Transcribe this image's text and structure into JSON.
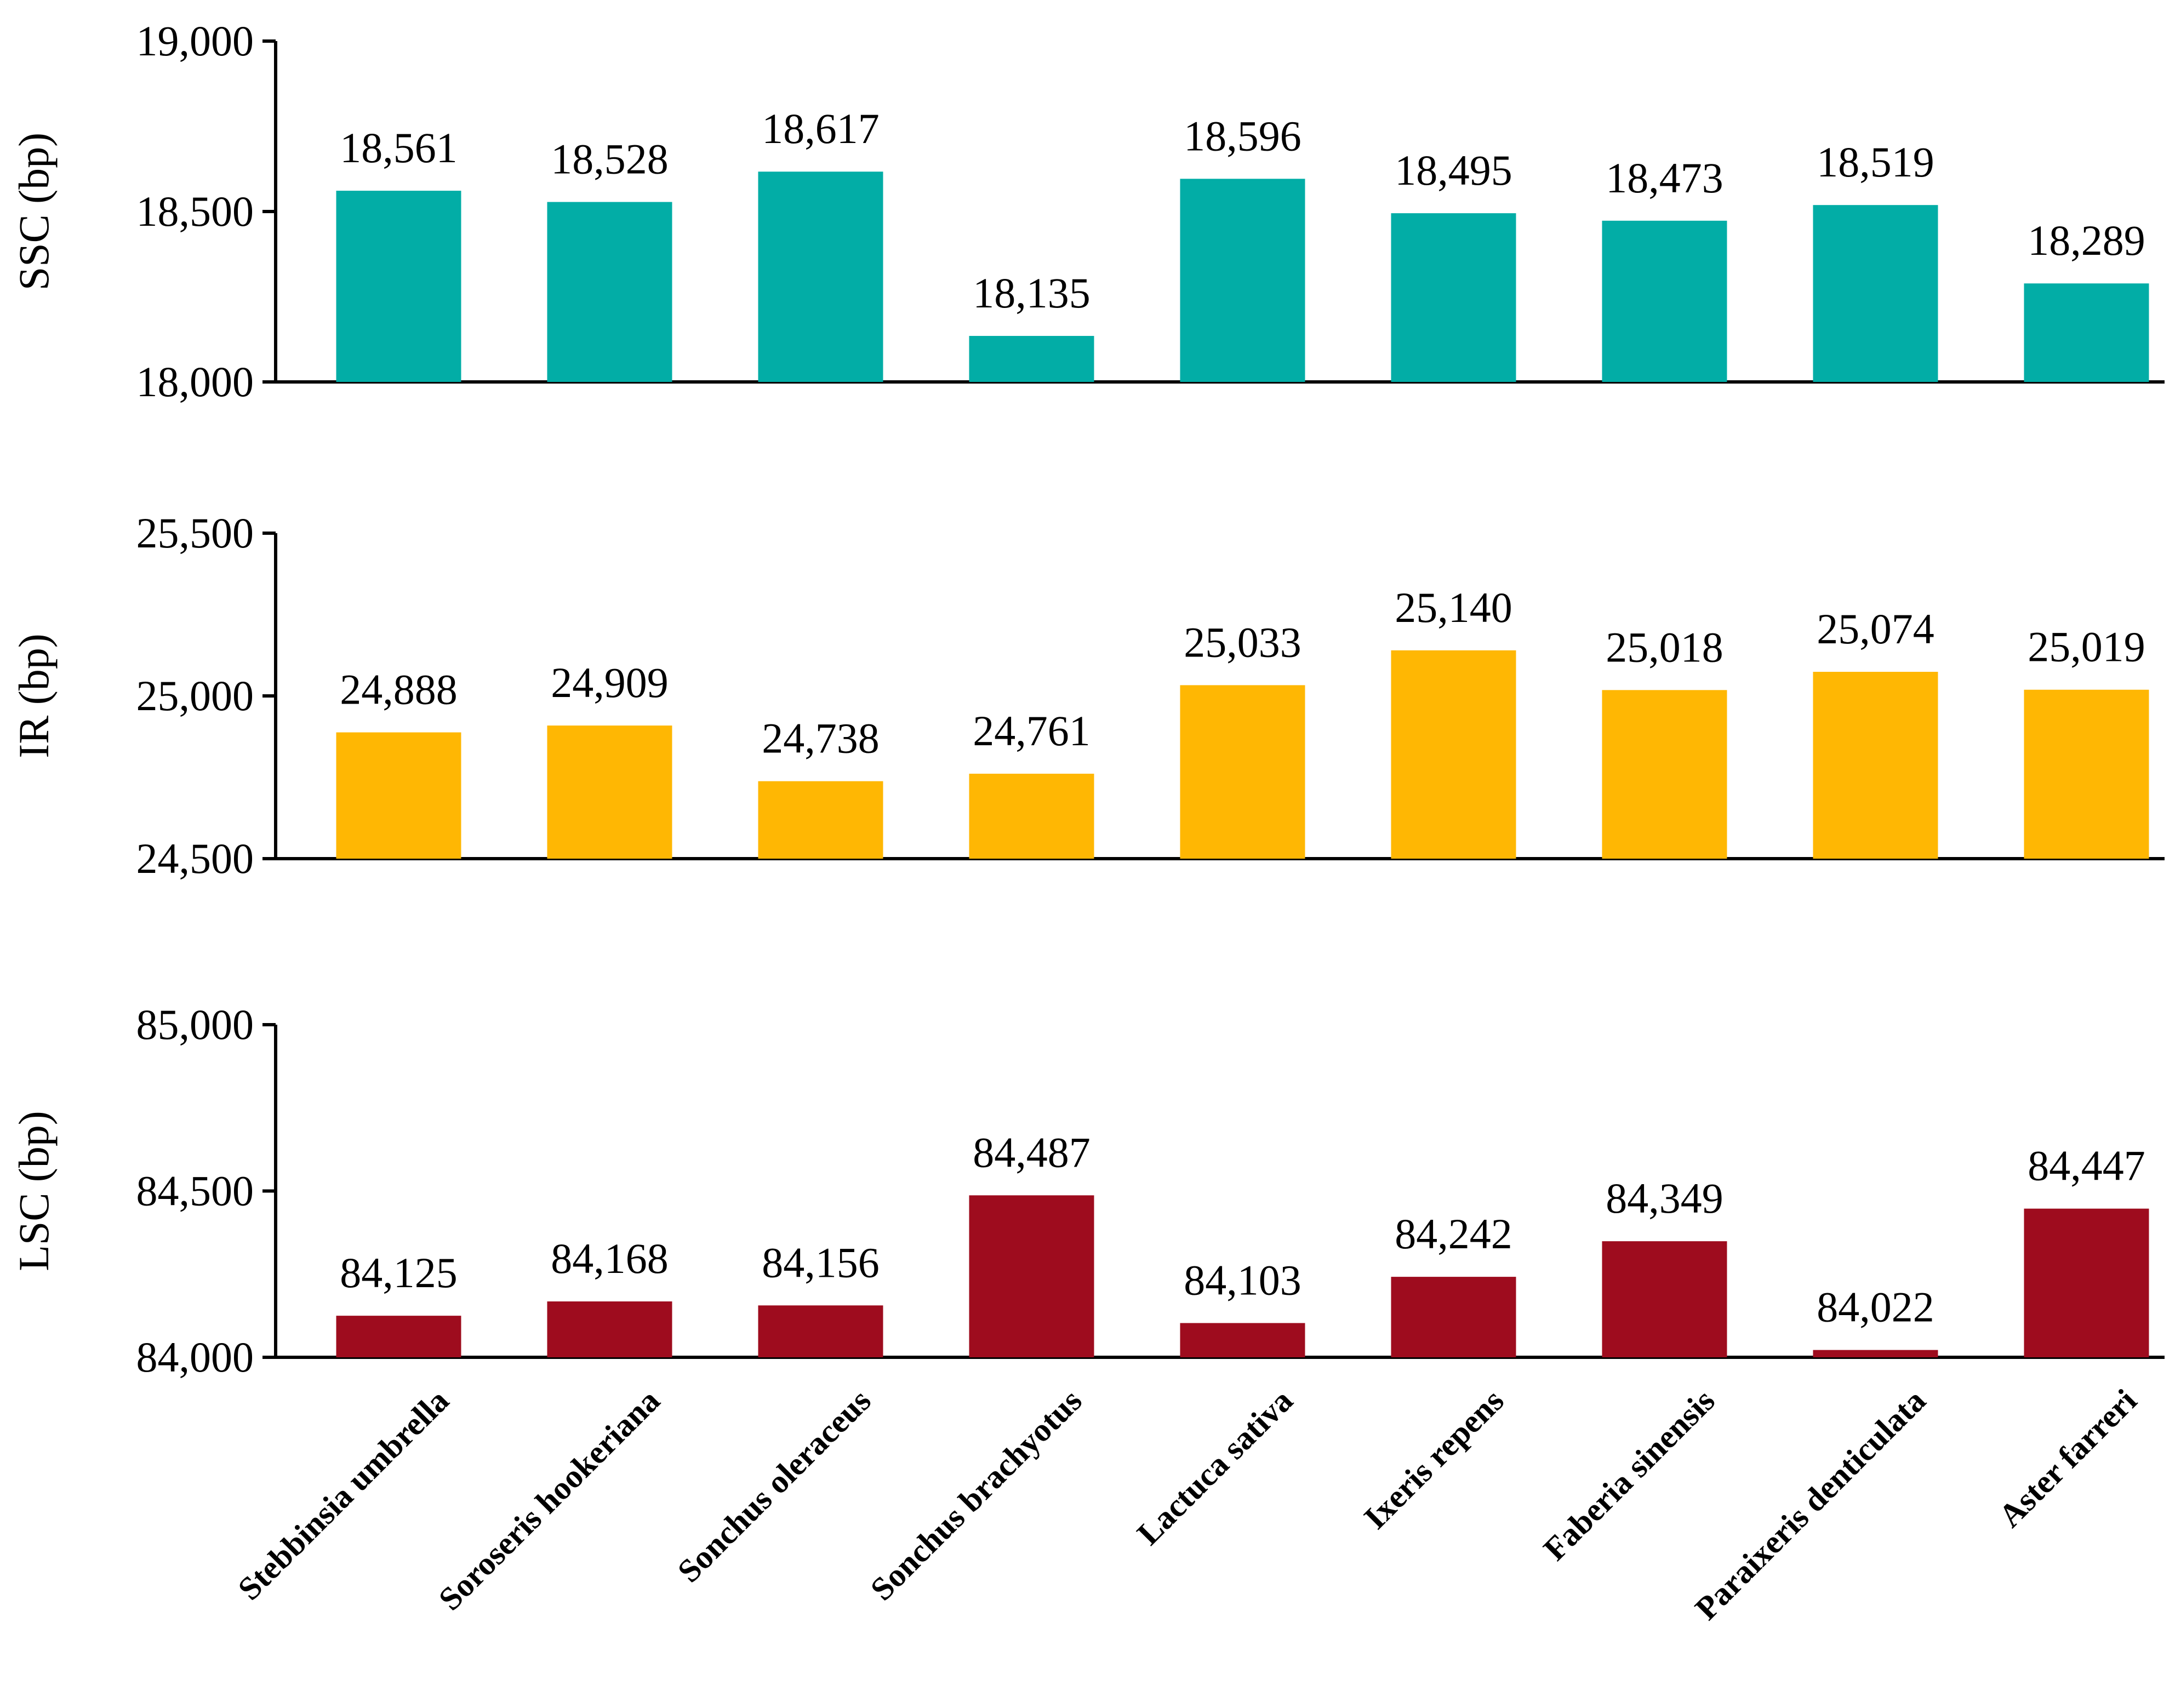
{
  "chart_data": {
    "type": "bar",
    "categories": [
      "Stebbinsia umbrella",
      "Soroseris hookeriana",
      "Sonchus oleraceus",
      "Sonchus brachyotus",
      "Lactuca sativa",
      "Ixeris repens",
      "Faberia sinensis",
      "Paraixeris denticulata",
      "Aster farreri"
    ],
    "panels": [
      {
        "name": "SSC",
        "ylabel": "SSC (bp)",
        "ylim": [
          18000,
          19000
        ],
        "yticks": [
          18000,
          18500,
          19000
        ],
        "ytick_labels": [
          "18,000",
          "18,500",
          "19,000"
        ],
        "color": "#02ADA6",
        "values": [
          18561,
          18528,
          18617,
          18135,
          18596,
          18495,
          18473,
          18519,
          18289
        ],
        "value_labels": [
          "18,561",
          "18,528",
          "18,617",
          "18,135",
          "18,596",
          "18,495",
          "18,473",
          "18,519",
          "18,289"
        ]
      },
      {
        "name": "IR",
        "ylabel": "IR (bp)",
        "ylim": [
          24500,
          25500
        ],
        "yticks": [
          24500,
          25000,
          25500
        ],
        "ytick_labels": [
          "24,500",
          "25,000",
          "25,500"
        ],
        "color": "#FFB703",
        "values": [
          24888,
          24909,
          24738,
          24761,
          25033,
          25140,
          25018,
          25074,
          25019
        ],
        "value_labels": [
          "24,888",
          "24,909",
          "24,738",
          "24,761",
          "25,033",
          "25,140",
          "25,018",
          "25,074",
          "25,019"
        ]
      },
      {
        "name": "LSC",
        "ylabel": "LSC (bp)",
        "ylim": [
          84000,
          85000
        ],
        "yticks": [
          84000,
          84500,
          85000
        ],
        "ytick_labels": [
          "84,000",
          "84,500",
          "85,000"
        ],
        "color": "#9E0C1E",
        "values": [
          84125,
          84168,
          84156,
          84487,
          84103,
          84242,
          84349,
          84022,
          84447
        ],
        "value_labels": [
          "84,125",
          "84,168",
          "84,156",
          "84,487",
          "84,103",
          "84,242",
          "84,349",
          "84,022",
          "84,447"
        ]
      }
    ],
    "grid": false,
    "legend": "none"
  }
}
